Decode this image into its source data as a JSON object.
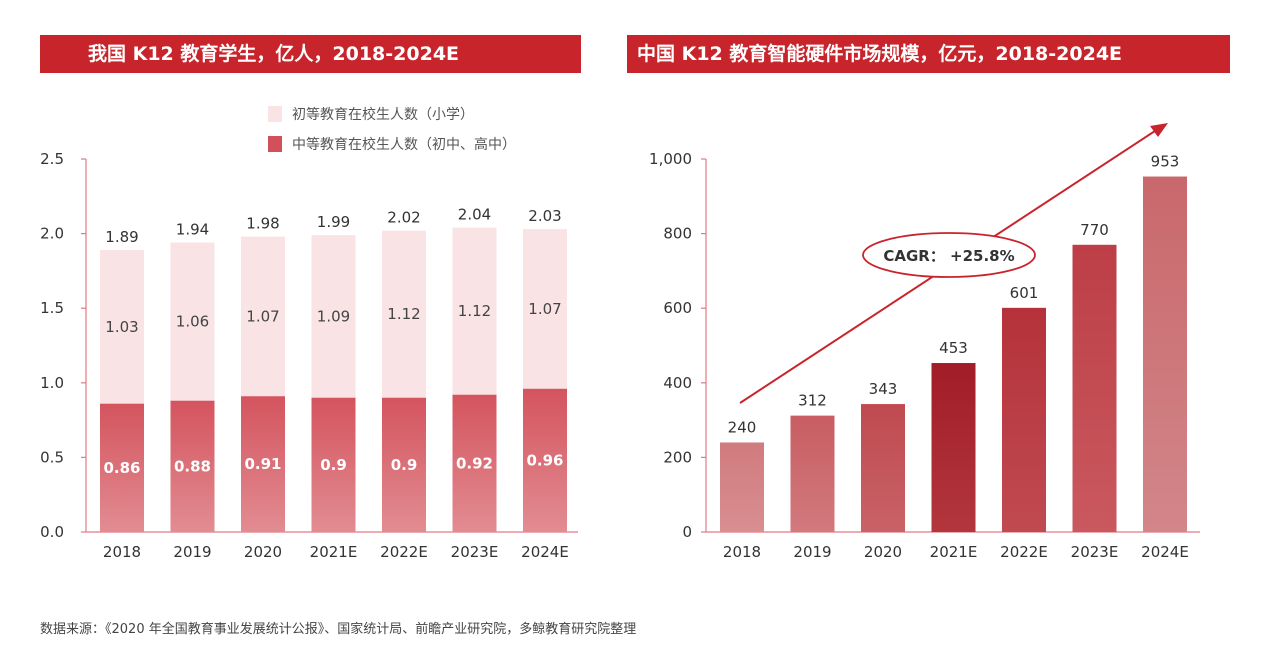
{
  "left_banner": "我国 K12 教育学生，亿人，2018-2024E",
  "right_banner": "中国 K12 教育智能硬件市场规模，亿元，2018-2024E",
  "source_note": "数据来源：《2020 年全国教育事业发展统计公报》、国家统计局、前瞻产业研究院，多鲸教育研究院整理",
  "colors": {
    "banner": "#c8242c",
    "primary_light": "#f9e3e5",
    "secondary_dark": "#d2505a",
    "axis": "#e07a82",
    "bar_gradient": [
      "#d07b7e",
      "#c95a60",
      "#c24a50",
      "#a8202a",
      "#b9353c",
      "#c2434b",
      "#cf6f72"
    ],
    "annotation": "#c8242c"
  },
  "chart_data": [
    {
      "type": "bar",
      "stacked": true,
      "categories": [
        "2018",
        "2019",
        "2020",
        "2021E",
        "2022E",
        "2023E",
        "2024E"
      ],
      "series": [
        {
          "name": "中等教育在校生人数（初中、高中）",
          "values": [
            0.86,
            0.88,
            0.91,
            0.9,
            0.9,
            0.92,
            0.96
          ],
          "value_labels": [
            "0.86",
            "0.88",
            "0.91",
            "0.9",
            "0.9",
            "0.92",
            "0.96"
          ]
        },
        {
          "name": "初等教育在校生人数（小学）",
          "values": [
            1.03,
            1.06,
            1.07,
            1.09,
            1.12,
            1.12,
            1.07
          ],
          "value_labels": [
            "1.03",
            "1.06",
            "1.07",
            "1.09",
            "1.12",
            "1.12",
            "1.07"
          ]
        }
      ],
      "totals": [
        1.89,
        1.94,
        1.98,
        1.99,
        2.02,
        2.04,
        2.03
      ],
      "total_labels": [
        "1.89",
        "1.94",
        "1.98",
        "1.99",
        "2.02",
        "2.04",
        "2.03"
      ],
      "ylim": [
        0,
        2.5
      ],
      "yticks": [
        0.0,
        0.5,
        1.0,
        1.5,
        2.0,
        2.5
      ],
      "ytick_labels": [
        "0.0",
        "0.5",
        "1.0",
        "1.5",
        "2.0",
        "2.5"
      ],
      "legend_position": "top-right",
      "grid": false
    },
    {
      "type": "bar",
      "categories": [
        "2018",
        "2019",
        "2020",
        "2021E",
        "2022E",
        "2023E",
        "2024E"
      ],
      "values": [
        240,
        312,
        343,
        453,
        601,
        770,
        953
      ],
      "value_labels": [
        "240",
        "312",
        "343",
        "453",
        "601",
        "770",
        "953"
      ],
      "ylim": [
        0,
        1000
      ],
      "yticks": [
        0,
        200,
        400,
        600,
        800,
        1000
      ],
      "ytick_labels": [
        "0",
        "200",
        "400",
        "600",
        "800",
        "1,000"
      ],
      "annotation": "CAGR：  +25.8%",
      "trend_arrow": true,
      "grid": false
    }
  ]
}
